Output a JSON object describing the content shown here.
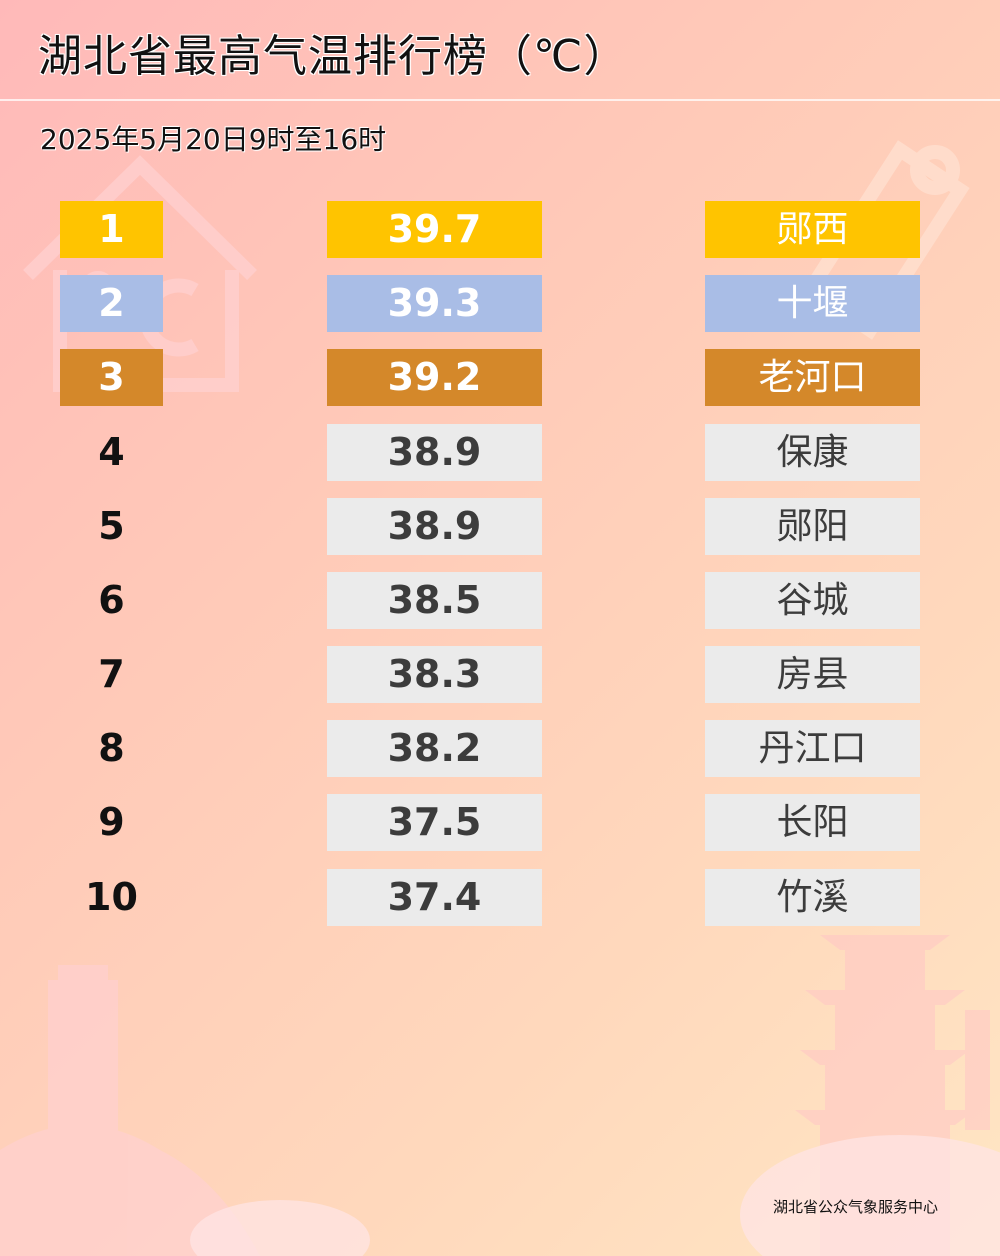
{
  "title": "湖北省最高气温排行榜（℃）",
  "subtitle": "2025年5月20日9时至16时",
  "footer": "湖北省公众气象服务中心",
  "colors": {
    "gold": "#ffc400",
    "silver": "#a9bde6",
    "bronze": "#d4882a",
    "default_cell": "#ebebeb"
  },
  "rows": [
    {
      "rank": "1",
      "temp": "39.7",
      "station": "郧西",
      "medal": "gold"
    },
    {
      "rank": "2",
      "temp": "39.3",
      "station": "十堰",
      "medal": "silver"
    },
    {
      "rank": "3",
      "temp": "39.2",
      "station": "老河口",
      "medal": "bronze"
    },
    {
      "rank": "4",
      "temp": "38.9",
      "station": "保康",
      "medal": ""
    },
    {
      "rank": "5",
      "temp": "38.9",
      "station": "郧阳",
      "medal": ""
    },
    {
      "rank": "6",
      "temp": "38.5",
      "station": "谷城",
      "medal": ""
    },
    {
      "rank": "7",
      "temp": "38.3",
      "station": "房县",
      "medal": ""
    },
    {
      "rank": "8",
      "temp": "38.2",
      "station": "丹江口",
      "medal": ""
    },
    {
      "rank": "9",
      "temp": "37.5",
      "station": "长阳",
      "medal": ""
    },
    {
      "rank": "10",
      "temp": "37.4",
      "station": "竹溪",
      "medal": ""
    }
  ]
}
